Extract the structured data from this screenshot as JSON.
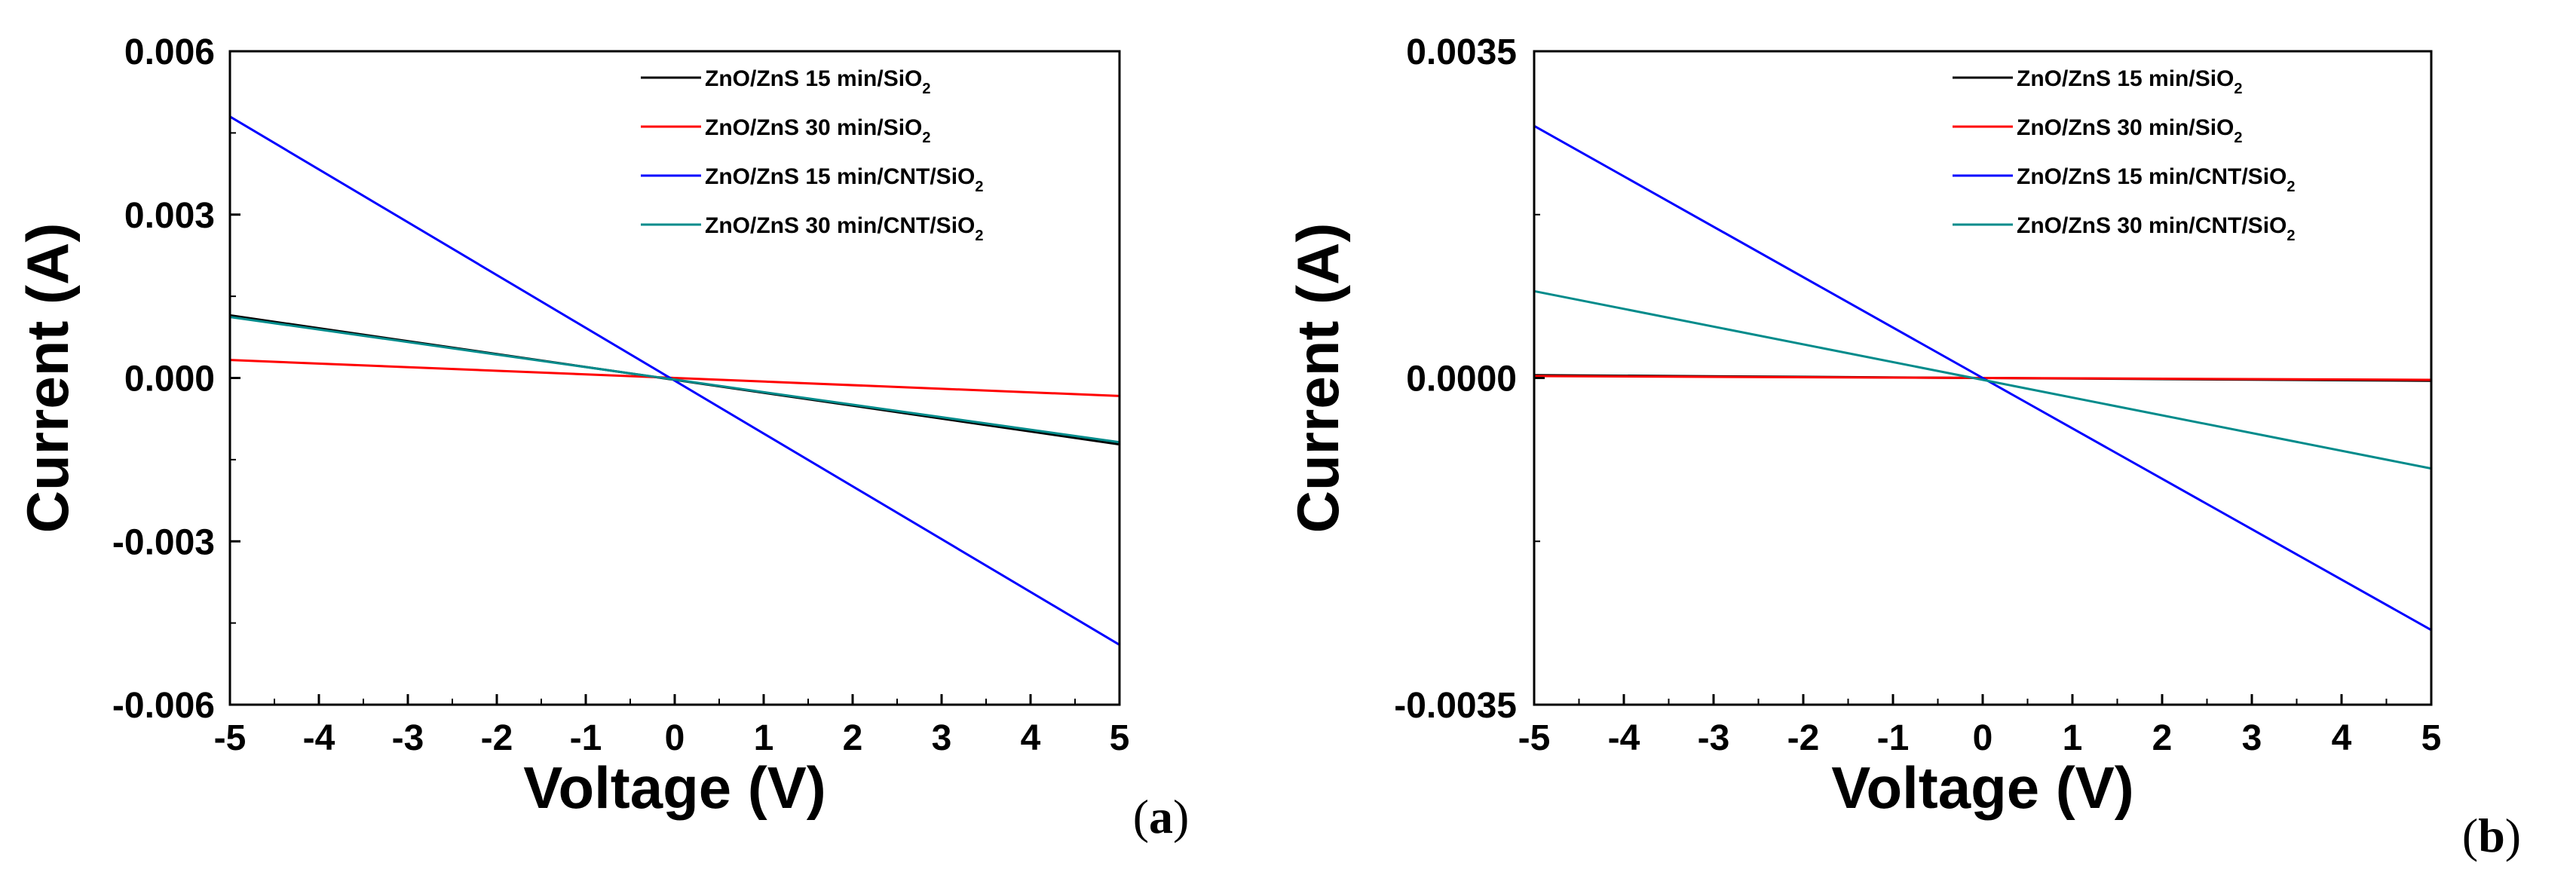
{
  "chart_data": [
    {
      "panel": "a",
      "panel_label": {
        "open": "(",
        "letter": "a",
        "close": ")"
      },
      "type": "line",
      "xlabel": "Voltage (V)",
      "ylabel": "Current (A)",
      "xlim": [
        -5,
        5
      ],
      "ylim": [
        -0.006,
        0.006
      ],
      "xticks": [
        -5,
        -4,
        -3,
        -2,
        -1,
        0,
        1,
        2,
        3,
        4,
        5
      ],
      "xtick_labels": [
        "-5",
        "-4",
        "-3",
        "-2",
        "-1",
        "0",
        "1",
        "2",
        "3",
        "4",
        "5"
      ],
      "yticks": [
        -0.006,
        -0.003,
        0,
        0.003,
        0.006
      ],
      "ytick_labels": [
        "-0.006",
        "-0.003",
        "0.000",
        "0.003",
        "0.006"
      ],
      "legend_position": "top-right",
      "series": [
        {
          "name": "ZnO/ZnS 15 min/SiO2",
          "label_main": "ZnO/ZnS 15 min/SiO",
          "label_sub": "2",
          "color": "#000000",
          "x": [
            -5,
            5
          ],
          "y": [
            0.00115,
            -0.00122
          ]
        },
        {
          "name": "ZnO/ZnS 30 min/SiO2",
          "label_main": "ZnO/ZnS 30 min/SiO",
          "label_sub": "2",
          "color": "#ff0000",
          "x": [
            -5,
            5
          ],
          "y": [
            0.00033,
            -0.00033
          ]
        },
        {
          "name": "ZnO/ZnS 15 min/CNT/SiO2",
          "label_main": "ZnO/ZnS 15 min/CNT/SiO",
          "label_sub": "2",
          "color": "#0000ff",
          "x": [
            -5,
            5
          ],
          "y": [
            0.0048,
            -0.0049
          ]
        },
        {
          "name": "ZnO/ZnS 30 min/CNT/SiO2",
          "label_main": "ZnO/ZnS 30 min/CNT/SiO",
          "label_sub": "2",
          "color": "#008b8b",
          "x": [
            -5,
            5
          ],
          "y": [
            0.00112,
            -0.00118
          ]
        }
      ]
    },
    {
      "panel": "b",
      "panel_label": {
        "open": "(",
        "letter": "b",
        "close": ")"
      },
      "type": "line",
      "xlabel": "Voltage (V)",
      "ylabel": "Current (A)",
      "xlim": [
        -5,
        5
      ],
      "ylim": [
        -0.0035,
        0.0035
      ],
      "xticks": [
        -5,
        -4,
        -3,
        -2,
        -1,
        0,
        1,
        2,
        3,
        4,
        5
      ],
      "xtick_labels": [
        "-5",
        "-4",
        "-3",
        "-2",
        "-1",
        "0",
        "1",
        "2",
        "3",
        "4",
        "5"
      ],
      "yticks": [
        -0.0035,
        0,
        0.0035
      ],
      "ytick_labels": [
        "-0.0035",
        "0.0000",
        "0.0035"
      ],
      "legend_position": "top-right",
      "series": [
        {
          "name": "ZnO/ZnS 15 min/SiO2",
          "label_main": "ZnO/ZnS 15 min/SiO",
          "label_sub": "2",
          "color": "#000000",
          "x": [
            -5,
            5
          ],
          "y": [
            3e-05,
            -3e-05
          ]
        },
        {
          "name": "ZnO/ZnS 30 min/SiO2",
          "label_main": "ZnO/ZnS 30 min/SiO",
          "label_sub": "2",
          "color": "#ff0000",
          "x": [
            -5,
            5
          ],
          "y": [
            2e-05,
            -2e-05
          ]
        },
        {
          "name": "ZnO/ZnS 15 min/CNT/SiO2",
          "label_main": "ZnO/ZnS 15 min/CNT/SiO",
          "label_sub": "2",
          "color": "#0000ff",
          "x": [
            -5,
            5
          ],
          "y": [
            0.0027,
            -0.0027
          ]
        },
        {
          "name": "ZnO/ZnS 30 min/CNT/SiO2",
          "label_main": "ZnO/ZnS 30 min/CNT/SiO",
          "label_sub": "2",
          "color": "#008b8b",
          "x": [
            -5,
            5
          ],
          "y": [
            0.00093,
            -0.00097
          ]
        }
      ]
    }
  ]
}
